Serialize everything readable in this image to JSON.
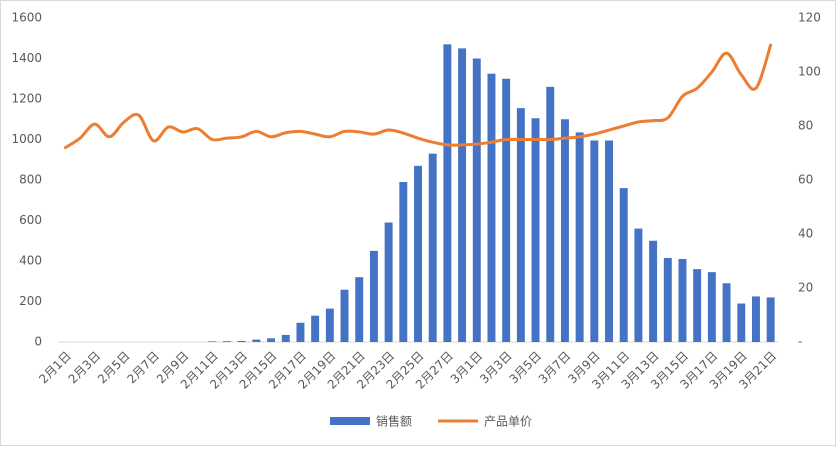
{
  "chart_data": {
    "type": "bar-line",
    "categories": [
      "2月1日",
      null,
      "2月3日",
      null,
      "2月5日",
      null,
      "2月7日",
      null,
      "2月9日",
      null,
      "2月11日",
      null,
      "2月13日",
      null,
      "2月15日",
      null,
      "2月17日",
      null,
      "2月19日",
      null,
      "2月21日",
      null,
      "2月23日",
      null,
      "2月25日",
      null,
      "2月27日",
      null,
      "3月1日",
      null,
      "3月3日",
      null,
      "3月5日",
      null,
      "3月7日",
      null,
      "3月9日",
      null,
      "3月11日",
      null,
      "3月13日",
      null,
      "3月15日",
      null,
      "3月17日",
      null,
      "3月19日",
      null,
      "3月21日"
    ],
    "series": [
      {
        "name": "销售额",
        "type": "bar",
        "color": "#4472c4",
        "values": [
          0,
          0,
          0,
          0,
          0,
          0,
          0,
          0,
          0,
          0,
          3,
          4,
          5,
          12,
          18,
          35,
          95,
          130,
          165,
          258,
          320,
          450,
          590,
          790,
          870,
          930,
          1470,
          1450,
          1400,
          1325,
          1300,
          1155,
          1105,
          1260,
          1100,
          1035,
          995,
          995,
          760,
          560,
          500,
          415,
          410,
          360,
          345,
          290,
          190,
          225,
          220
        ]
      },
      {
        "name": "产品单价",
        "type": "line",
        "axis": "y2",
        "color": "#ed7d31",
        "values": [
          72,
          75.5,
          80.7,
          76,
          81.5,
          84,
          74.5,
          79.6,
          77.8,
          79,
          75,
          75.5,
          76,
          78,
          76,
          77.5,
          78,
          77,
          76,
          78,
          77.8,
          77,
          78.5,
          77.4,
          75.5,
          74,
          73,
          73,
          73.3,
          74,
          75,
          75,
          75,
          75,
          75.5,
          76,
          77,
          78.5,
          80,
          81.5,
          82,
          83,
          91,
          94,
          100,
          107,
          99,
          94,
          110
        ]
      }
    ],
    "ylim": [
      0,
      1600
    ],
    "yticks": [
      0,
      200,
      400,
      600,
      800,
      1000,
      1200,
      1400,
      1600
    ],
    "y2lim": [
      0,
      120
    ],
    "y2ticks": [
      {
        "value": 0,
        "label": "-"
      },
      20,
      40,
      60,
      80,
      100,
      120
    ],
    "grid": false,
    "legend": "bottom"
  }
}
